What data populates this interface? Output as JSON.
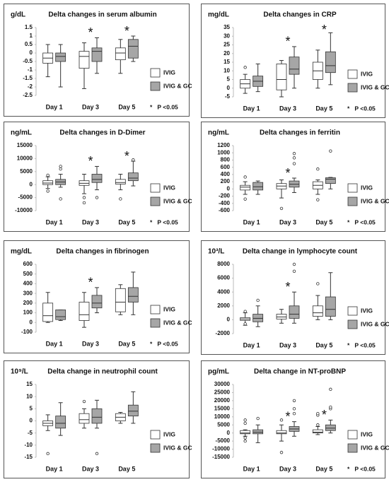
{
  "chart_data": [
    {
      "type": "box",
      "title": "Delta changes in serum albumin",
      "unit": "g/dL",
      "categories": [
        "Day 1",
        "Day 3",
        "Day 5"
      ],
      "series": [
        {
          "name": "IVIG",
          "color": "#ffffff",
          "values": [
            {
              "min": -1.4,
              "q1": -0.6,
              "median": -0.3,
              "q3": 0,
              "max": 0.5,
              "outliers": []
            },
            {
              "min": -2.1,
              "q1": -0.9,
              "median": -0.2,
              "q3": 0.1,
              "max": 0.6,
              "outliers": []
            },
            {
              "min": -1.2,
              "q1": -0.4,
              "median": 0,
              "q3": 0.3,
              "max": 0.8,
              "outliers": []
            }
          ]
        },
        {
          "name": "IVIG & GC",
          "color": "#a6a6a6",
          "values": [
            {
              "min": -2,
              "q1": -0.5,
              "median": -0.2,
              "q3": 0,
              "max": 0.5,
              "outliers": []
            },
            {
              "min": -1.2,
              "q1": -0.5,
              "median": 0.1,
              "q3": 0.3,
              "max": 0.9,
              "outliers": []
            },
            {
              "min": -0.5,
              "q1": -0.3,
              "median": 0.4,
              "q3": 0.8,
              "max": 1,
              "outliers": []
            }
          ]
        }
      ],
      "ylim": [
        -2.5,
        1.5
      ],
      "yticks": [
        -2.5,
        -2,
        -1.5,
        -1,
        -0.5,
        0,
        0.5,
        1,
        1.5
      ],
      "marker": "*",
      "significant": [
        false,
        true,
        true
      ],
      "note": "*   P <0.05"
    },
    {
      "type": "box",
      "title": "Delta changes in CRP",
      "unit": "mg/dL",
      "categories": [
        "Day 1",
        "Day 3",
        "Day 5"
      ],
      "series": [
        {
          "name": "IVIG",
          "color": "#ffffff",
          "values": [
            {
              "min": -3,
              "q1": 0,
              "median": 2.5,
              "q3": 5,
              "max": 8,
              "outliers": [
                12
              ]
            },
            {
              "min": -5,
              "q1": -1,
              "median": 5,
              "q3": 14,
              "max": 16,
              "outliers": []
            },
            {
              "min": 0,
              "q1": 5,
              "median": 10,
              "q3": 15,
              "max": 22,
              "outliers": []
            }
          ]
        },
        {
          "name": "IVIG & GC",
          "color": "#a6a6a6",
          "values": [
            {
              "min": -2,
              "q1": 1,
              "median": 4,
              "q3": 7,
              "max": 14,
              "outliers": []
            },
            {
              "min": 0,
              "q1": 8,
              "median": 11,
              "q3": 18,
              "max": 24,
              "outliers": []
            },
            {
              "min": 2,
              "q1": 9,
              "median": 13,
              "q3": 21,
              "max": 32,
              "outliers": []
            }
          ]
        }
      ],
      "ylim": [
        -5,
        35
      ],
      "yticks": [
        -5,
        0,
        5,
        10,
        15,
        20,
        25,
        30,
        35
      ],
      "marker": "*",
      "significant": [
        false,
        true,
        true
      ],
      "note": "*   P <0.05"
    },
    {
      "type": "box",
      "title": "Delta changes in D-Dimer",
      "unit": "ng/mL",
      "categories": [
        "Day 1",
        "Day 3",
        "Day 5"
      ],
      "series": [
        {
          "name": "IVIG",
          "color": "#ffffff",
          "values": [
            {
              "min": -1500,
              "q1": 0,
              "median": 600,
              "q3": 1500,
              "max": 3000,
              "outliers": [
                3600,
                -2500
              ]
            },
            {
              "min": -3500,
              "q1": -300,
              "median": 500,
              "q3": 1500,
              "max": 4000,
              "outliers": [
                -5000,
                -7000
              ]
            },
            {
              "min": -2000,
              "q1": 200,
              "median": 800,
              "q3": 2000,
              "max": 4000,
              "outliers": [
                -5500
              ]
            }
          ]
        },
        {
          "name": "IVIG & GC",
          "color": "#a6a6a6",
          "values": [
            {
              "min": -1000,
              "q1": 0,
              "median": 1000,
              "q3": 2000,
              "max": 4000,
              "outliers": [
                6000,
                7000,
                -5500
              ]
            },
            {
              "min": -2000,
              "q1": 800,
              "median": 2000,
              "q3": 4000,
              "max": 7000,
              "outliers": [
                -5000
              ]
            },
            {
              "min": -500,
              "q1": 1500,
              "median": 2500,
              "q3": 4500,
              "max": 9000,
              "outliers": [
                9500
              ]
            }
          ]
        }
      ],
      "ylim": [
        -10000,
        15000
      ],
      "yticks": [
        -10000,
        -5000,
        0,
        5000,
        10000,
        15000
      ],
      "marker": "*",
      "significant": [
        false,
        true,
        true
      ],
      "note": "*   P <0.05"
    },
    {
      "type": "box",
      "title": "Delta changes in ferritin",
      "unit": "ng/mL",
      "categories": [
        "Day 1",
        "Day 3",
        "Day 5"
      ],
      "series": [
        {
          "name": "IVIG",
          "color": "#ffffff",
          "values": [
            {
              "min": -150,
              "q1": -30,
              "median": 50,
              "q3": 100,
              "max": 200,
              "outliers": [
                330,
                -280
              ]
            },
            {
              "min": -250,
              "q1": 0,
              "median": 80,
              "q3": 150,
              "max": 250,
              "outliers": [
                -540
              ]
            },
            {
              "min": -150,
              "q1": 0,
              "median": 100,
              "q3": 200,
              "max": 250,
              "outliers": [
                550,
                -300
              ]
            }
          ]
        },
        {
          "name": "IVIG & GC",
          "color": "#a6a6a6",
          "values": [
            {
              "min": -150,
              "q1": -30,
              "median": 60,
              "q3": 180,
              "max": 220,
              "outliers": []
            },
            {
              "min": -100,
              "q1": 50,
              "median": 130,
              "q3": 220,
              "max": 300,
              "outliers": [
                700,
                860,
                980
              ]
            },
            {
              "min": 0,
              "q1": 150,
              "median": 270,
              "q3": 310,
              "max": 320,
              "outliers": [
                1050
              ]
            }
          ]
        }
      ],
      "ylim": [
        -600,
        1200
      ],
      "yticks": [
        -600,
        -400,
        -200,
        0,
        200,
        400,
        600,
        800,
        1000,
        1200
      ],
      "marker": "*",
      "significant": [
        false,
        true,
        false
      ],
      "note": "*   P <0.05"
    },
    {
      "type": "box",
      "title": "Delta changes in fibrinogen",
      "unit": "mg/dL",
      "categories": [
        "Day 1",
        "Day 3",
        "Day 5"
      ],
      "series": [
        {
          "name": "IVIG",
          "color": "#ffffff",
          "values": [
            {
              "min": 0,
              "q1": 10,
              "median": 70,
              "q3": 200,
              "max": 310,
              "outliers": []
            },
            {
              "min": -50,
              "q1": 20,
              "median": 80,
              "q3": 210,
              "max": 310,
              "outliers": []
            },
            {
              "min": 80,
              "q1": 110,
              "median": 210,
              "q3": 350,
              "max": 390,
              "outliers": []
            }
          ]
        },
        {
          "name": "IVIG & GC",
          "color": "#a6a6a6",
          "values": [
            {
              "min": 20,
              "q1": 30,
              "median": 60,
              "q3": 130,
              "max": 130,
              "outliers": []
            },
            {
              "min": 100,
              "q1": 150,
              "median": 200,
              "q3": 280,
              "max": 360,
              "outliers": []
            },
            {
              "min": 80,
              "q1": 210,
              "median": 270,
              "q3": 360,
              "max": 520,
              "outliers": []
            }
          ]
        }
      ],
      "ylim": [
        -100,
        600
      ],
      "yticks": [
        -100,
        0,
        100,
        200,
        300,
        400,
        500,
        600
      ],
      "marker": "*",
      "significant": [
        false,
        true,
        false
      ],
      "note": "*   P <0.05"
    },
    {
      "type": "box",
      "title": "Delta change in lymphocyte count",
      "unit": "10³/L",
      "categories": [
        "Day 1",
        "Day 3",
        "Day 5"
      ],
      "series": [
        {
          "name": "IVIG",
          "color": "#ffffff",
          "values": [
            {
              "min": -800,
              "q1": -100,
              "median": 100,
              "q3": 300,
              "max": 1000,
              "outliers": [
                1200,
                -600
              ]
            },
            {
              "min": -500,
              "q1": 100,
              "median": 400,
              "q3": 800,
              "max": 1500,
              "outliers": []
            },
            {
              "min": 0,
              "q1": 500,
              "median": 1000,
              "q3": 2000,
              "max": 3500,
              "outliers": [
                5200
              ]
            }
          ]
        },
        {
          "name": "IVIG & GC",
          "color": "#a6a6a6",
          "values": [
            {
              "min": -1000,
              "q1": -300,
              "median": 200,
              "q3": 800,
              "max": 2000,
              "outliers": [
                2800
              ]
            },
            {
              "min": -500,
              "q1": 200,
              "median": 800,
              "q3": 2000,
              "max": 4000,
              "outliers": [
                7000,
                8000
              ]
            },
            {
              "min": 0,
              "q1": 500,
              "median": 1500,
              "q3": 3300,
              "max": 6800,
              "outliers": []
            }
          ]
        }
      ],
      "ylim": [
        -2000,
        8000
      ],
      "yticks": [
        -2000,
        0,
        2000,
        4000,
        6000,
        8000
      ],
      "marker": "*",
      "significant": [
        false,
        true,
        false
      ],
      "note": "*   P <0.05"
    },
    {
      "type": "box",
      "title": "Delta change in neutrophil count",
      "unit": "10⁹/L",
      "categories": [
        "Day 1",
        "Day 3",
        "Day 5"
      ],
      "series": [
        {
          "name": "IVIG",
          "color": "#ffffff",
          "values": [
            {
              "min": -4,
              "q1": -2,
              "median": -1,
              "q3": 0,
              "max": 2.5,
              "outliers": [
                -13.5
              ]
            },
            {
              "min": -3,
              "q1": -1,
              "median": 0.5,
              "q3": 3,
              "max": 5,
              "outliers": [
                8
              ]
            },
            {
              "min": -1,
              "q1": 0,
              "median": 1.5,
              "q3": 3,
              "max": 3.5,
              "outliers": []
            }
          ]
        },
        {
          "name": "IVIG & GC",
          "color": "#a6a6a6",
          "values": [
            {
              "min": -6,
              "q1": -3,
              "median": -1,
              "q3": 2,
              "max": 7.5,
              "outliers": []
            },
            {
              "min": -3,
              "q1": -1,
              "median": 1.5,
              "q3": 5,
              "max": 8.5,
              "outliers": [
                -13.5
              ]
            },
            {
              "min": -1,
              "q1": 2,
              "median": 4,
              "q3": 6.5,
              "max": 12,
              "outliers": []
            }
          ]
        }
      ],
      "ylim": [
        -15,
        15
      ],
      "yticks": [
        -15,
        -10,
        -5,
        0,
        5,
        10,
        15
      ]
    },
    {
      "type": "box",
      "title": "Delta change in NT-proBNP",
      "unit": "pg/mL",
      "categories": [
        "Day 1",
        "Day 3",
        "Day 5"
      ],
      "series": [
        {
          "name": "IVIG",
          "color": "#ffffff",
          "values": [
            {
              "min": -2000,
              "q1": -500,
              "median": 0,
              "q3": 1500,
              "max": 2000,
              "outliers": [
                8000,
                6000,
                -3000,
                -5000
              ]
            },
            {
              "min": -5000,
              "q1": -500,
              "median": 0,
              "q3": 1500,
              "max": 5000,
              "outliers": [
                -12000,
                8000
              ]
            },
            {
              "min": -1000,
              "q1": 0,
              "median": 500,
              "q3": 2000,
              "max": 4000,
              "outliers": [
                11000,
                12000,
                5000
              ]
            }
          ]
        },
        {
          "name": "IVIG & GC",
          "color": "#a6a6a6",
          "values": [
            {
              "min": -6000,
              "q1": -500,
              "median": 500,
              "q3": 2000,
              "max": 5000,
              "outliers": [
                9000
              ]
            },
            {
              "min": -2000,
              "q1": 1000,
              "median": 2500,
              "q3": 4000,
              "max": 7000,
              "outliers": [
                12000,
                15000,
                20000
              ]
            },
            {
              "min": 0,
              "q1": 1500,
              "median": 3000,
              "q3": 5000,
              "max": 8000,
              "outliers": [
                15000,
                16000,
                27000
              ]
            }
          ]
        }
      ],
      "ylim": [
        -15000,
        30000
      ],
      "yticks": [
        -15000,
        -10000,
        -5000,
        0,
        5000,
        10000,
        15000,
        20000,
        25000,
        30000
      ],
      "marker": "*",
      "significant": [
        false,
        true,
        true
      ],
      "note": "*   P <0.05"
    }
  ]
}
